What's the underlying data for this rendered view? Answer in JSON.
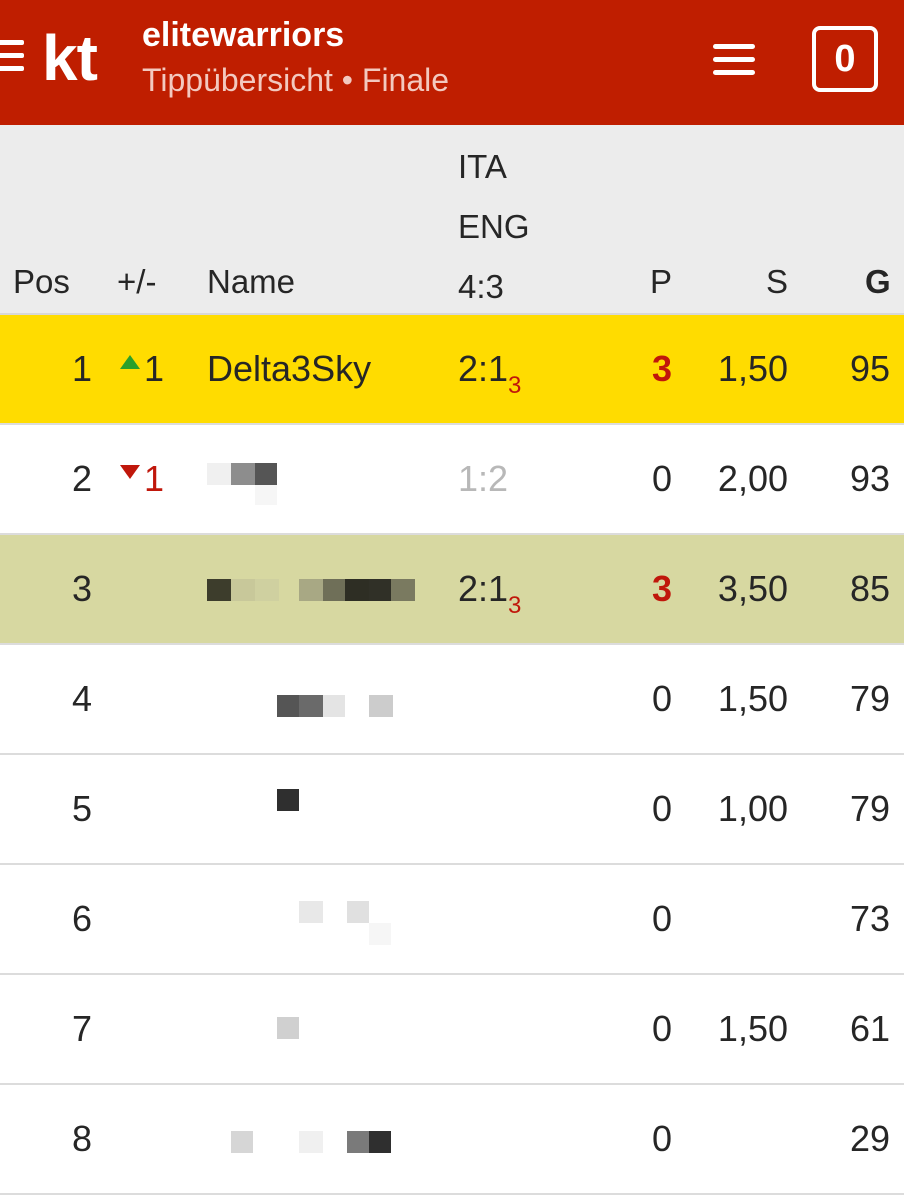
{
  "header": {
    "logo": "kt",
    "title": "elitewarriors",
    "subtitle": "Tippübersicht • Finale",
    "counter": "0",
    "brand_color": "#bf1e00"
  },
  "table": {
    "columns": {
      "pos": "Pos",
      "change": "+/-",
      "name": "Name",
      "match_home": "ITA",
      "match_away": "ENG",
      "match_result": "4:3",
      "points": "P",
      "s": "S",
      "g": "G"
    },
    "rows": [
      {
        "pos": "1",
        "change": "1",
        "change_dir": "up",
        "name": "Delta3Sky",
        "tip": "2:1",
        "tip_points": "3",
        "p": "3",
        "s": "1,50",
        "g": "95",
        "highlight": "me"
      },
      {
        "pos": "2",
        "change": "1",
        "change_dir": "down",
        "name": "",
        "tip": "1:2",
        "tip_points": "",
        "p": "0",
        "s": "2,00",
        "g": "93"
      },
      {
        "pos": "3",
        "change": "",
        "name": "",
        "tip": "2:1",
        "tip_points": "3",
        "p": "3",
        "s": "3,50",
        "g": "85",
        "highlight": "hl"
      },
      {
        "pos": "4",
        "change": "",
        "name": "",
        "tip": "",
        "tip_points": "",
        "p": "0",
        "s": "1,50",
        "g": "79"
      },
      {
        "pos": "5",
        "change": "",
        "name": "",
        "tip": "",
        "tip_points": "",
        "p": "0",
        "s": "1,00",
        "g": "79"
      },
      {
        "pos": "6",
        "change": "",
        "name": "",
        "tip": "",
        "tip_points": "",
        "p": "0",
        "s": "",
        "g": "73"
      },
      {
        "pos": "7",
        "change": "",
        "name": "",
        "tip": "",
        "tip_points": "",
        "p": "0",
        "s": "1,50",
        "g": "61"
      },
      {
        "pos": "8",
        "change": "",
        "name": "",
        "tip": "",
        "tip_points": "",
        "p": "0",
        "s": "",
        "g": "29"
      }
    ]
  }
}
